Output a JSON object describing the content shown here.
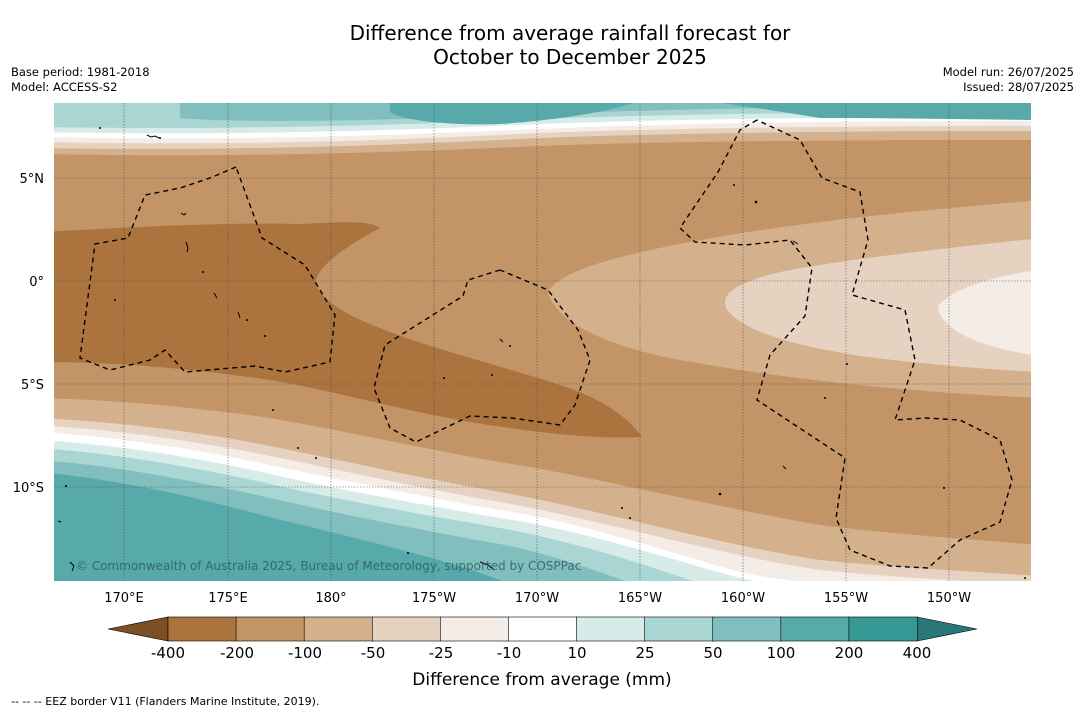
{
  "title": {
    "line1": "Difference from average rainfall forecast for",
    "line2": "October to December 2025"
  },
  "meta_left": {
    "base_period": "Base period: 1981-2018",
    "model": "Model: ACCESS-S2"
  },
  "meta_right": {
    "model_run": "Model run: 26/07/2025",
    "issued": "Issued: 28/07/2025"
  },
  "map": {
    "lon_labels": [
      "170°E",
      "175°E",
      "180°",
      "175°W",
      "170°W",
      "165°W",
      "160°W",
      "155°W",
      "150°W"
    ],
    "lat_labels": [
      "5°N",
      "0°",
      "5°S",
      "10°S"
    ],
    "copyright": "© Commonwealth of Australia 2025, Bureau of Meteorology, supported by COSPPac"
  },
  "legend": {
    "title": "Difference from average (mm)",
    "ticks": [
      "-400",
      "-200",
      "-100",
      "-50",
      "-25",
      "-10",
      "10",
      "25",
      "50",
      "100",
      "200",
      "400"
    ],
    "colors": [
      "#7d4f25",
      "#ab733d",
      "#c39466",
      "#d4b08c",
      "#e6d2c0",
      "#f4ece6",
      "#ffffff",
      "#d7ebe8",
      "#a9d6d2",
      "#80bfbe",
      "#58a9aa",
      "#369996",
      "#287878"
    ]
  },
  "footnote": "--  --  -- EEZ border V11 (Flanders Marine Institute, 2019)."
}
